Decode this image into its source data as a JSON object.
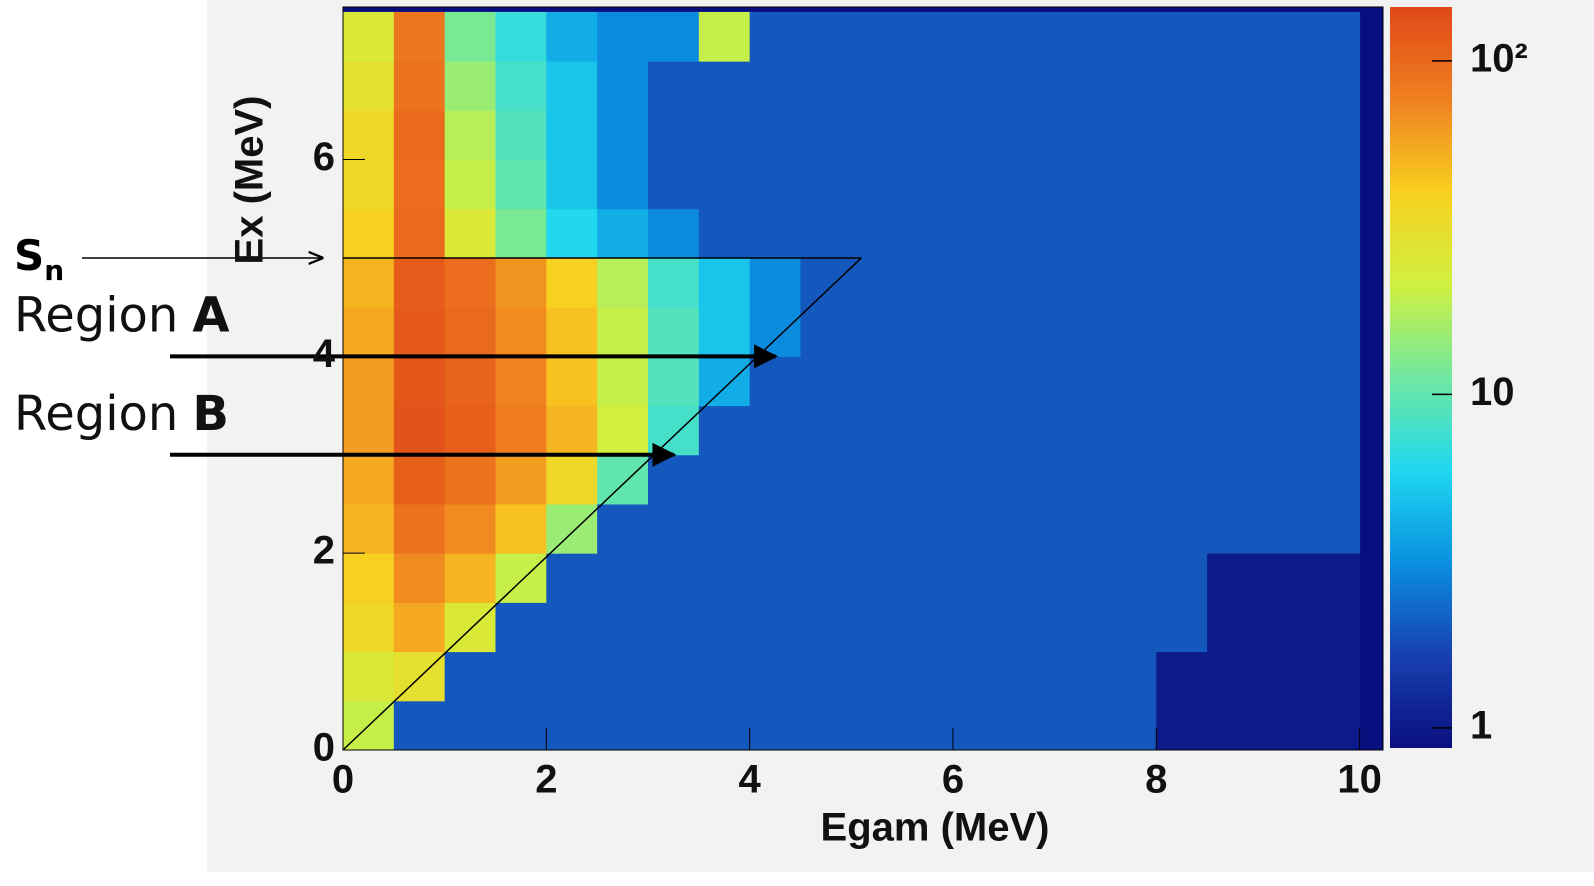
{
  "chart_data": {
    "type": "heatmap",
    "x_label": "Egam (MeV)",
    "y_label": "Ex (MeV)",
    "xlim": [
      0,
      10.23
    ],
    "ylim": [
      0,
      7.55
    ],
    "xticks": [
      0,
      2,
      4,
      6,
      8,
      10
    ],
    "yticks": [
      0,
      2,
      4,
      6
    ],
    "xbins": [
      0,
      0.5,
      1,
      1.5,
      2,
      2.5,
      3,
      3.5,
      4,
      4.5,
      5,
      5.5,
      6,
      6.5,
      7,
      7.5,
      8,
      8.5,
      9,
      9.5,
      10
    ],
    "ybins": [
      0,
      0.5,
      1,
      1.5,
      2,
      2.5,
      3,
      3.5,
      4,
      4.5,
      5,
      5.5,
      6,
      6.5,
      7,
      7.5
    ],
    "z": [
      [
        20,
        2,
        2,
        2,
        2,
        2,
        2,
        2,
        2,
        2,
        2,
        2,
        2,
        2,
        2,
        2,
        1,
        1,
        1,
        1
      ],
      [
        25,
        30,
        2,
        2,
        2,
        2,
        2,
        2,
        2,
        2,
        2,
        2,
        2,
        2,
        2,
        2,
        1,
        1,
        1,
        1
      ],
      [
        35,
        55,
        25,
        2,
        2,
        2,
        2,
        2,
        2,
        2,
        2,
        2,
        2,
        2,
        2,
        2,
        2,
        1,
        1,
        1
      ],
      [
        40,
        70,
        50,
        20,
        2,
        2,
        2,
        2,
        2,
        2,
        2,
        2,
        2,
        2,
        2,
        2,
        2,
        1,
        1,
        1
      ],
      [
        50,
        90,
        70,
        45,
        15,
        2,
        2,
        2,
        2,
        2,
        2,
        2,
        2,
        2,
        2,
        2,
        2,
        2,
        2,
        2
      ],
      [
        55,
        110,
        90,
        60,
        35,
        10,
        2,
        2,
        2,
        2,
        2,
        2,
        2,
        2,
        2,
        2,
        2,
        2,
        2,
        2
      ],
      [
        60,
        130,
        110,
        80,
        50,
        22,
        8,
        2,
        2,
        2,
        2,
        2,
        2,
        2,
        2,
        2,
        2,
        2,
        2,
        2
      ],
      [
        60,
        125,
        105,
        75,
        45,
        20,
        9,
        4,
        2,
        2,
        2,
        2,
        2,
        2,
        2,
        2,
        2,
        2,
        2,
        2
      ],
      [
        55,
        120,
        100,
        70,
        45,
        20,
        9,
        5,
        3,
        2,
        2,
        2,
        2,
        2,
        2,
        2,
        2,
        2,
        2,
        2
      ],
      [
        50,
        115,
        95,
        65,
        40,
        18,
        8,
        5,
        3,
        2,
        2,
        2,
        2,
        2,
        2,
        2,
        2,
        2,
        2,
        2
      ],
      [
        40,
        100,
        25,
        12,
        6,
        4,
        3,
        2,
        2,
        2,
        2,
        2,
        2,
        2,
        2,
        2,
        2,
        2,
        2,
        2
      ],
      [
        35,
        95,
        20,
        10,
        5,
        3,
        2,
        2,
        2,
        2,
        2,
        2,
        2,
        2,
        2,
        2,
        2,
        2,
        2,
        2
      ],
      [
        35,
        100,
        18,
        9,
        5,
        3,
        2,
        2,
        2,
        2,
        2,
        2,
        2,
        2,
        2,
        2,
        2,
        2,
        2,
        2
      ],
      [
        30,
        90,
        15,
        8,
        5,
        3,
        2,
        2,
        2,
        2,
        2,
        2,
        2,
        2,
        2,
        2,
        2,
        2,
        2,
        2
      ],
      [
        25,
        85,
        12,
        7,
        4,
        3,
        3,
        20,
        2,
        2,
        2,
        2,
        2,
        2,
        2,
        2,
        2,
        2,
        2,
        2
      ]
    ],
    "zlim": [
      0.87,
      145
    ],
    "zlog": true,
    "zticks": [
      1,
      10,
      {
        "value": 100,
        "label": "10²"
      }
    ],
    "colormap": [
      "#0a0f80",
      "#1840b0",
      "#0a90e0",
      "#20d8f0",
      "#70e8a0",
      "#d0f040",
      "#f8d020",
      "#f08020",
      "#e04818"
    ],
    "annotations": [
      {
        "text": "S",
        "subscript": "n",
        "y": 5
      },
      {
        "text": "Region",
        "emphasis": "A",
        "y": 4
      },
      {
        "text": "Region",
        "emphasis": "B",
        "y": 3
      }
    ]
  }
}
